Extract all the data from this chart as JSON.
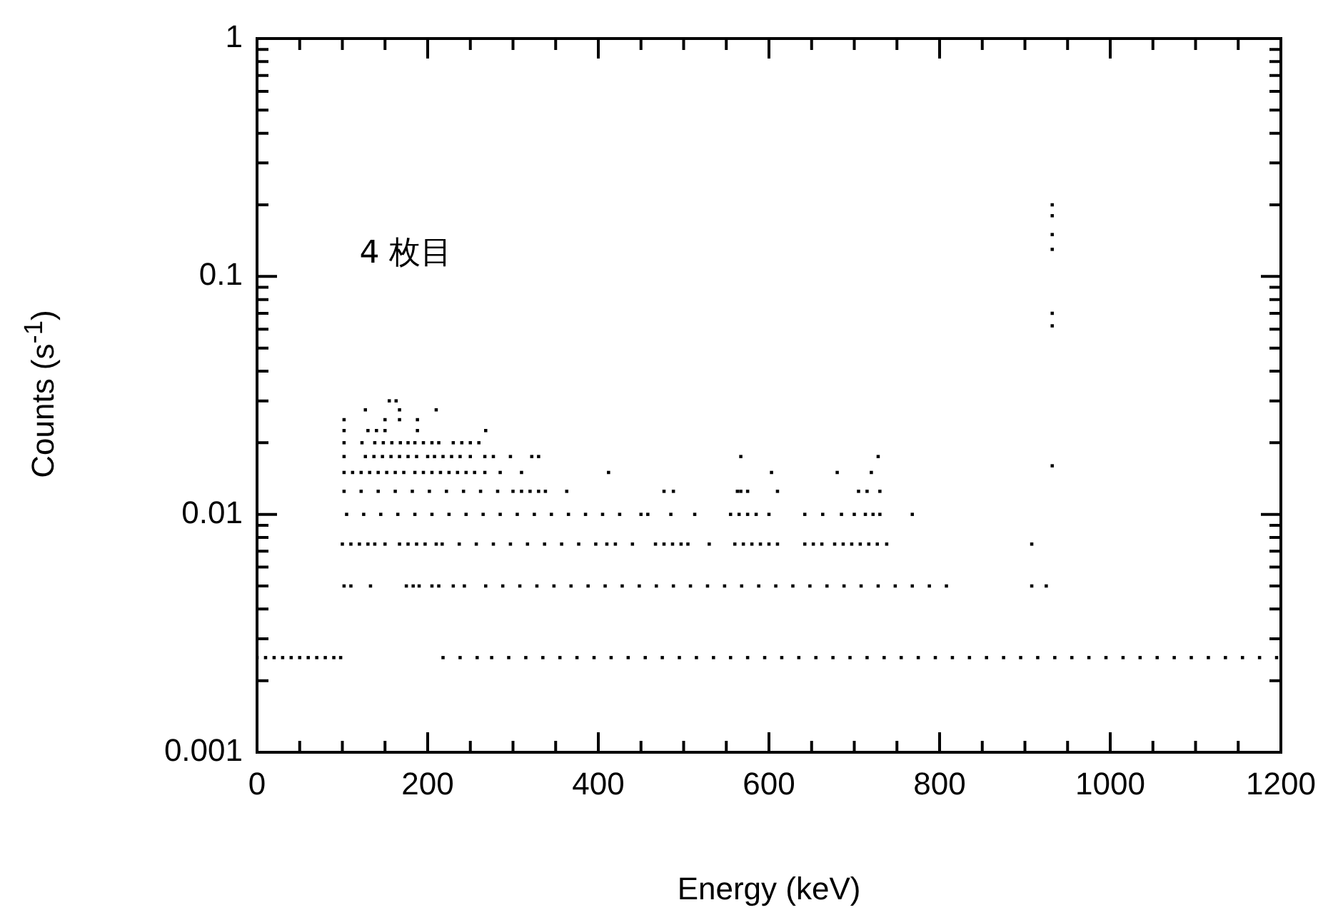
{
  "chart_data": {
    "type": "scatter",
    "xlabel": "Energy (keV)",
    "ylabel": "Counts (s$^{-1}$)",
    "annotations": [
      "4 枚目"
    ],
    "log": "y",
    "grid": false,
    "legend": false,
    "marker": "square",
    "xlim": [
      0,
      1200
    ],
    "ylim": [
      0.001,
      1
    ],
    "xticks": [
      0,
      {
        "value": 50,
        "label": null
      },
      200,
      {
        "value": 100,
        "label": null
      },
      {
        "value": 150,
        "label": null
      },
      {
        "value": 250,
        "label": null
      },
      {
        "value": 300,
        "label": null
      },
      {
        "value": 350,
        "label": null
      },
      400,
      {
        "value": 450,
        "label": null
      },
      {
        "value": 500,
        "label": null
      },
      {
        "value": 550,
        "label": null
      },
      600,
      {
        "value": 650,
        "label": null
      },
      {
        "value": 700,
        "label": null
      },
      {
        "value": 750,
        "label": null
      },
      800,
      {
        "value": 850,
        "label": null
      },
      {
        "value": 900,
        "label": null
      },
      {
        "value": 950,
        "label": null
      },
      1000,
      {
        "value": 1050,
        "label": null
      },
      {
        "value": 1100,
        "label": null
      },
      {
        "value": 1150,
        "label": null
      },
      1200
    ],
    "yticks": [
      0.001,
      {
        "value": 0.002,
        "label": null
      },
      {
        "value": 0.003,
        "label": null
      },
      {
        "value": 0.004,
        "label": null
      },
      {
        "value": 0.005,
        "label": null
      },
      {
        "value": 0.006,
        "label": null
      },
      {
        "value": 0.007,
        "label": null
      },
      {
        "value": 0.008,
        "label": null
      },
      {
        "value": 0.009,
        "label": null
      },
      0.01,
      {
        "value": 0.02,
        "label": null
      },
      {
        "value": 0.03,
        "label": null
      },
      {
        "value": 0.04,
        "label": null
      },
      {
        "value": 0.05,
        "label": null
      },
      {
        "value": 0.06,
        "label": null
      },
      {
        "value": 0.07,
        "label": null
      },
      {
        "value": 0.08,
        "label": null
      },
      {
        "value": 0.09,
        "label": null
      },
      0.1,
      {
        "value": 0.2,
        "label": null
      },
      {
        "value": 0.3,
        "label": null
      },
      {
        "value": 0.4,
        "label": null
      },
      {
        "value": 0.5,
        "label": null
      },
      {
        "value": 0.6,
        "label": null
      },
      {
        "value": 0.7,
        "label": null
      },
      {
        "value": 0.8,
        "label": null
      },
      {
        "value": 0.9,
        "label": null
      },
      1
    ],
    "series": [
      {
        "color": "#000000",
        "x": [
          0,
          10,
          20,
          30,
          40,
          50,
          60,
          70,
          80,
          90,
          98,
          218,
          238,
          258,
          275,
          295,
          315,
          335,
          355,
          375,
          395,
          415,
          435,
          455,
          475,
          495,
          515,
          535,
          555,
          575,
          595,
          615,
          635,
          655,
          675,
          695,
          715,
          735,
          755,
          775,
          795,
          815,
          835,
          855,
          875,
          895,
          915,
          935,
          955,
          975,
          995,
          1015,
          1035,
          1055,
          1075,
          1095,
          1115,
          1135,
          1155,
          1175,
          1195
        ],
        "values": [
          0.0025,
          0.0025,
          0.0025,
          0.0025,
          0.0025,
          0.0025,
          0.0025,
          0.0025,
          0.0025,
          0.0025,
          0.0025,
          0.0025,
          0.0025,
          0.0025,
          0.0025,
          0.0025,
          0.0025,
          0.0025,
          0.0025,
          0.0025,
          0.0025,
          0.0025,
          0.0025,
          0.0025,
          0.0025,
          0.0025,
          0.0025,
          0.0025,
          0.0025,
          0.0025,
          0.0025,
          0.0025,
          0.0025,
          0.0025,
          0.0025,
          0.0025,
          0.0025,
          0.0025,
          0.0025,
          0.0025,
          0.0025,
          0.0025,
          0.0025,
          0.0025,
          0.0025,
          0.0025,
          0.0025,
          0.0025,
          0.0025,
          0.0025,
          0.0025,
          0.0025,
          0.0025,
          0.0025,
          0.0025,
          0.0025,
          0.0025,
          0.0025,
          0.0025,
          0.0025,
          0.0025
        ]
      },
      {
        "color": "#000000",
        "x": [
          102,
          110,
          133,
          175,
          183,
          190,
          205,
          213,
          230,
          243,
          268,
          288,
          308,
          328,
          348,
          368,
          388,
          408,
          428,
          448,
          468,
          488,
          508,
          528,
          548,
          568,
          588,
          608,
          628,
          648,
          668,
          688,
          708,
          728,
          748,
          768,
          788,
          808,
          908,
          925
        ],
        "values": [
          0.005,
          0.005,
          0.005,
          0.005,
          0.005,
          0.005,
          0.005,
          0.005,
          0.005,
          0.005,
          0.005,
          0.005,
          0.005,
          0.005,
          0.005,
          0.005,
          0.005,
          0.005,
          0.005,
          0.005,
          0.005,
          0.005,
          0.005,
          0.005,
          0.005,
          0.005,
          0.005,
          0.005,
          0.005,
          0.005,
          0.005,
          0.005,
          0.005,
          0.005,
          0.005,
          0.005,
          0.005,
          0.005,
          0.005,
          0.005
        ]
      },
      {
        "color": "#000000",
        "x": [
          100,
          110,
          120,
          130,
          138,
          150,
          167,
          177,
          187,
          197,
          210,
          217,
          237,
          257,
          277,
          297,
          317,
          337,
          357,
          377,
          397,
          410,
          420,
          440,
          467,
          477,
          487,
          497,
          505,
          530,
          560,
          570,
          580,
          590,
          600,
          610,
          642,
          652,
          662,
          677,
          687,
          697,
          707,
          717,
          727,
          738,
          908
        ],
        "values": [
          0.0075,
          0.0075,
          0.0075,
          0.0075,
          0.0075,
          0.0075,
          0.0075,
          0.0075,
          0.0075,
          0.0075,
          0.0075,
          0.0075,
          0.0075,
          0.0075,
          0.0075,
          0.0075,
          0.0075,
          0.0075,
          0.0075,
          0.0075,
          0.0075,
          0.0075,
          0.0075,
          0.0075,
          0.0075,
          0.0075,
          0.0075,
          0.0075,
          0.0075,
          0.0075,
          0.0075,
          0.0075,
          0.0075,
          0.0075,
          0.0075,
          0.0075,
          0.0075,
          0.0075,
          0.0075,
          0.0075,
          0.0075,
          0.0075,
          0.0075,
          0.0075,
          0.0075,
          0.0075,
          0.0075
        ]
      },
      {
        "color": "#000000",
        "x": [
          105,
          125,
          145,
          165,
          185,
          205,
          225,
          245,
          265,
          285,
          305,
          325,
          345,
          365,
          385,
          405,
          425,
          450,
          458,
          485,
          513,
          555,
          565,
          575,
          585,
          600,
          642,
          663,
          685,
          700,
          713,
          722,
          730,
          768
        ],
        "values": [
          0.01,
          0.01,
          0.01,
          0.01,
          0.01,
          0.01,
          0.01,
          0.01,
          0.01,
          0.01,
          0.01,
          0.01,
          0.01,
          0.01,
          0.01,
          0.01,
          0.01,
          0.01,
          0.01,
          0.01,
          0.01,
          0.01,
          0.01,
          0.01,
          0.01,
          0.01,
          0.01,
          0.01,
          0.01,
          0.01,
          0.01,
          0.01,
          0.01,
          0.01
        ]
      },
      {
        "color": "#000000",
        "x": [
          102,
          122,
          142,
          162,
          182,
          202,
          222,
          242,
          262,
          282,
          300,
          310,
          320,
          330,
          338,
          363,
          477,
          488,
          563,
          567,
          575,
          610,
          705,
          715,
          730
        ],
        "values": [
          0.0125,
          0.0125,
          0.0125,
          0.0125,
          0.0125,
          0.0125,
          0.0125,
          0.0125,
          0.0125,
          0.0125,
          0.0125,
          0.0125,
          0.0125,
          0.0125,
          0.0125,
          0.0125,
          0.0125,
          0.0125,
          0.0125,
          0.0125,
          0.0125,
          0.0125,
          0.0125,
          0.0125,
          0.0125
        ]
      },
      {
        "color": "#000000",
        "x": [
          102,
          112,
          122,
          132,
          142,
          152,
          162,
          172,
          185,
          195,
          205,
          215,
          225,
          235,
          245,
          255,
          267,
          285,
          310,
          412,
          603,
          680,
          720
        ],
        "values": [
          0.015,
          0.015,
          0.015,
          0.015,
          0.015,
          0.015,
          0.015,
          0.015,
          0.015,
          0.015,
          0.015,
          0.015,
          0.015,
          0.015,
          0.015,
          0.015,
          0.015,
          0.015,
          0.015,
          0.015,
          0.015,
          0.015,
          0.015
        ]
      },
      {
        "color": "#000000",
        "x": [
          102,
          127,
          137,
          147,
          157,
          167,
          177,
          187,
          200,
          208,
          218,
          228,
          238,
          250,
          267,
          277,
          297,
          322,
          330,
          567,
          728
        ],
        "values": [
          0.0175,
          0.0175,
          0.0175,
          0.0175,
          0.0175,
          0.0175,
          0.0175,
          0.0175,
          0.0175,
          0.0175,
          0.0175,
          0.0175,
          0.0175,
          0.0175,
          0.0175,
          0.0175,
          0.0175,
          0.0175,
          0.0175,
          0.0175,
          0.0175
        ]
      },
      {
        "color": "#000000",
        "x": [
          102,
          123,
          138,
          148,
          158,
          168,
          177,
          185,
          195,
          205,
          213,
          230,
          240,
          250,
          260,
          102,
          130,
          140,
          150,
          188,
          268,
          102,
          150,
          167,
          188,
          127,
          167,
          210,
          155,
          163
        ],
        "values": [
          0.02,
          0.02,
          0.02,
          0.02,
          0.02,
          0.02,
          0.02,
          0.02,
          0.02,
          0.02,
          0.02,
          0.02,
          0.02,
          0.02,
          0.02,
          0.0225,
          0.0225,
          0.0225,
          0.0225,
          0.0225,
          0.0225,
          0.025,
          0.025,
          0.025,
          0.025,
          0.0275,
          0.0275,
          0.0275,
          0.03,
          0.03
        ]
      },
      {
        "color": "#000000",
        "x": [
          932,
          932,
          932,
          932,
          932,
          932,
          932
        ],
        "values": [
          0.2,
          0.18,
          0.15,
          0.13,
          0.07,
          0.062,
          0.016
        ]
      }
    ]
  }
}
